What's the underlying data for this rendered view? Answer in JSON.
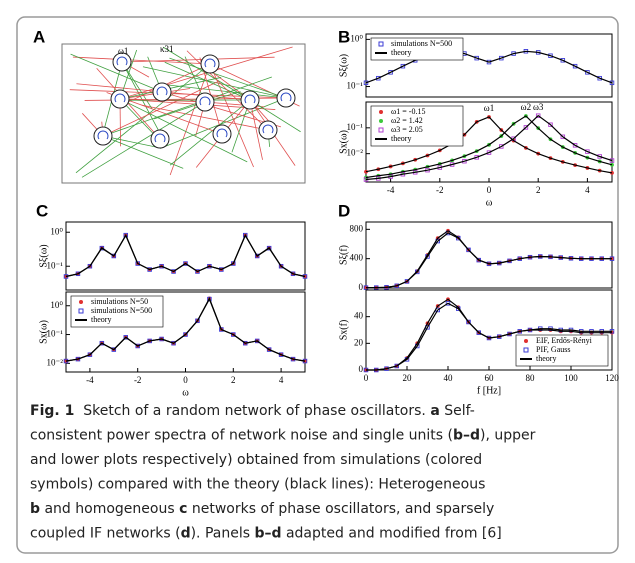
{
  "panel_labels": [
    "A",
    "B",
    "C",
    "D"
  ],
  "network": {
    "node_label": "ω1",
    "coupling_label": "κ31"
  },
  "plots": [
    {
      "type": "line",
      "ylabel": "Sξ(ω)",
      "yscale": "log",
      "xlim": [
        -5,
        5
      ],
      "ylim": [
        0.06,
        1.3
      ],
      "yticks": [
        {
          "value": 0.1,
          "label": "10⁻¹"
        },
        {
          "value": 1,
          "label": "10⁰"
        }
      ],
      "x": [
        -5,
        -4.5,
        -4,
        -3.5,
        -3,
        -2.5,
        -2,
        -1.5,
        -1,
        -0.5,
        0,
        0.5,
        1,
        1.5,
        2,
        2.5,
        3,
        3.5,
        4,
        4.5,
        5
      ],
      "series": [
        {
          "name": "simulations N=500",
          "color": "#3b3bd6",
          "marker": "square",
          "values": [
            0.12,
            0.15,
            0.2,
            0.27,
            0.36,
            0.45,
            0.53,
            0.56,
            0.5,
            0.4,
            0.33,
            0.4,
            0.5,
            0.56,
            0.53,
            0.45,
            0.36,
            0.27,
            0.2,
            0.15,
            0.12
          ]
        }
      ],
      "overlay": {
        "name": "theory",
        "color": "#000000"
      },
      "legend": "upper left"
    },
    {
      "type": "line",
      "ylabel": "Sx(ω)",
      "xlabel": "ω",
      "yscale": "log",
      "xlim": [
        -5,
        5
      ],
      "ylim": [
        0.0008,
        1
      ],
      "yticks": [
        {
          "value": 0.01,
          "label": "10⁻²"
        },
        {
          "value": 0.1,
          "label": "10⁻¹"
        }
      ],
      "xticks": [
        -4,
        -2,
        0,
        2,
        4
      ],
      "x": [
        -5,
        -4.5,
        -4,
        -3.5,
        -3,
        -2.5,
        -2,
        -1.5,
        -1,
        -0.5,
        0,
        0.5,
        1,
        1.5,
        2,
        2.5,
        3,
        3.5,
        4,
        4.5,
        5
      ],
      "series": [
        {
          "name": "ω1 = -0.15",
          "color": "#e03030",
          "marker": "circle",
          "values": [
            0.002,
            0.0025,
            0.0032,
            0.0042,
            0.0058,
            0.0085,
            0.0134,
            0.024,
            0.054,
            0.17,
            0.263,
            0.082,
            0.032,
            0.0167,
            0.01,
            0.0067,
            0.0048,
            0.0036,
            0.0028,
            0.0022,
            0.0018
          ]
        },
        {
          "name": "ω2 = 1.42",
          "color": "#3cc83c",
          "marker": "circle",
          "values": [
            0.0012,
            0.0014,
            0.0016,
            0.002,
            0.0024,
            0.0031,
            0.004,
            0.0055,
            0.008,
            0.0125,
            0.022,
            0.048,
            0.143,
            0.288,
            0.097,
            0.036,
            0.018,
            0.0107,
            0.007,
            0.005,
            0.0037
          ]
        },
        {
          "name": "ω3 = 2.05",
          "color": "#b040d0",
          "marker": "square",
          "values": [
            0.001,
            0.0011,
            0.0013,
            0.0016,
            0.0019,
            0.0023,
            0.0029,
            0.0038,
            0.0051,
            0.0072,
            0.011,
            0.019,
            0.038,
            0.104,
            0.295,
            0.132,
            0.045,
            0.021,
            0.012,
            0.0078,
            0.0054
          ]
        }
      ],
      "annotations": [
        "ω1",
        "ω2",
        "ω3"
      ],
      "overlay": {
        "name": "theory",
        "color": "#000000"
      },
      "legend": "upper left"
    },
    {
      "type": "line",
      "ylabel": "Sξ(ω)",
      "yscale": "log",
      "xlim": [
        -5,
        5
      ],
      "ylim": [
        0.02,
        2
      ],
      "yticks": [
        {
          "value": 0.1,
          "label": "10⁻¹"
        },
        {
          "value": 1,
          "label": "10⁰"
        }
      ],
      "x": [
        -5,
        -4.5,
        -4,
        -3.5,
        -3,
        -2.5,
        -2,
        -1.5,
        -1,
        -0.5,
        0,
        0.5,
        1,
        1.5,
        2,
        2.5,
        3,
        3.5,
        4,
        4.5,
        5
      ],
      "series": [
        {
          "color": "#e03030",
          "marker": "circle",
          "values": [
            0.05,
            0.06,
            0.1,
            0.35,
            0.2,
            0.8,
            0.12,
            0.08,
            0.1,
            0.07,
            0.12,
            0.07,
            0.1,
            0.08,
            0.12,
            0.8,
            0.2,
            0.35,
            0.1,
            0.06,
            0.05
          ]
        },
        {
          "color": "#3b3bd6",
          "marker": "square",
          "values": [
            0.05,
            0.06,
            0.1,
            0.34,
            0.2,
            0.82,
            0.12,
            0.08,
            0.1,
            0.07,
            0.12,
            0.07,
            0.1,
            0.08,
            0.12,
            0.82,
            0.2,
            0.34,
            0.1,
            0.06,
            0.05
          ]
        }
      ],
      "overlay": {
        "color": "#000000"
      }
    },
    {
      "type": "line",
      "ylabel": "Sx(ω)",
      "xlabel": "ω",
      "yscale": "log",
      "xlim": [
        -5,
        5
      ],
      "ylim": [
        0.005,
        3
      ],
      "yticks": [
        {
          "value": 0.01,
          "label": "10⁻²"
        },
        {
          "value": 0.1,
          "label": "10⁻¹"
        },
        {
          "value": 1,
          "label": "10⁰"
        }
      ],
      "xticks": [
        -4,
        -2,
        0,
        2,
        4
      ],
      "x": [
        -5,
        -4.5,
        -4,
        -3.5,
        -3,
        -2.5,
        -2,
        -1.5,
        -1,
        -0.5,
        0,
        0.5,
        1,
        1.5,
        2,
        2.5,
        3,
        3.5,
        4,
        4.5,
        5
      ],
      "series": [
        {
          "name": "simulations N=50",
          "color": "#e03030",
          "marker": "circle",
          "values": [
            0.012,
            0.014,
            0.02,
            0.05,
            0.03,
            0.08,
            0.04,
            0.06,
            0.07,
            0.05,
            0.1,
            0.3,
            1.8,
            0.15,
            0.1,
            0.05,
            0.06,
            0.03,
            0.02,
            0.014,
            0.012
          ]
        },
        {
          "name": "simulations N=500",
          "color": "#3b3bd6",
          "marker": "square",
          "values": [
            0.012,
            0.014,
            0.02,
            0.05,
            0.03,
            0.08,
            0.04,
            0.06,
            0.07,
            0.05,
            0.1,
            0.3,
            1.7,
            0.15,
            0.1,
            0.05,
            0.06,
            0.03,
            0.02,
            0.014,
            0.012
          ]
        }
      ],
      "overlay": {
        "name": "theory",
        "color": "#000000"
      },
      "legend": "upper left"
    },
    {
      "type": "line",
      "ylabel": "Sξ(f)",
      "xlim": [
        0,
        120
      ],
      "ylim": [
        0,
        900
      ],
      "yticks": [
        0,
        400,
        800
      ],
      "x": [
        0,
        5,
        10,
        15,
        20,
        25,
        30,
        35,
        40,
        45,
        50,
        55,
        60,
        65,
        70,
        75,
        80,
        85,
        90,
        95,
        100,
        105,
        110,
        115,
        120
      ],
      "series": [
        {
          "color": "#e03030",
          "marker": "circle",
          "values": [
            5,
            5,
            10,
            30,
            90,
            230,
            450,
            680,
            780,
            690,
            520,
            380,
            330,
            340,
            370,
            400,
            420,
            430,
            425,
            415,
            405,
            400,
            400,
            400,
            400
          ]
        },
        {
          "color": "#3b3bd6",
          "marker": "square",
          "values": [
            5,
            5,
            10,
            30,
            90,
            220,
            430,
            640,
            750,
            680,
            520,
            380,
            330,
            340,
            370,
            400,
            420,
            430,
            425,
            415,
            405,
            400,
            400,
            400,
            400
          ]
        }
      ],
      "overlay": {
        "color": "#000000"
      }
    },
    {
      "type": "line",
      "ylabel": "Sx(f)",
      "xlabel": "f [Hz]",
      "xlim": [
        0,
        120
      ],
      "ylim": [
        0,
        60
      ],
      "yticks": [
        0,
        20,
        40
      ],
      "xticks": [
        0,
        20,
        40,
        60,
        80,
        100,
        120
      ],
      "x": [
        0,
        5,
        10,
        15,
        20,
        25,
        30,
        35,
        40,
        45,
        50,
        55,
        60,
        65,
        70,
        75,
        80,
        85,
        90,
        95,
        100,
        105,
        110,
        115,
        120
      ],
      "series": [
        {
          "name": "EIF, Erdős-Rényi",
          "color": "#e03030",
          "marker": "circle",
          "values": [
            0,
            0,
            1,
            3,
            9,
            20,
            35,
            48,
            53,
            47,
            36,
            28,
            24,
            25,
            27,
            29,
            30,
            30,
            30,
            29,
            29,
            28,
            28,
            28,
            28
          ]
        },
        {
          "name": "PIF, Gauss",
          "color": "#3b3bd6",
          "marker": "square",
          "values": [
            0,
            0,
            1,
            3,
            8,
            18,
            32,
            45,
            50,
            46,
            36,
            28,
            24,
            25,
            27,
            29,
            30,
            31,
            31,
            30,
            30,
            29,
            29,
            29,
            29
          ]
        }
      ],
      "overlay": {
        "name": "theory",
        "color": "#000000"
      },
      "legend": "lower right"
    }
  ],
  "caption": {
    "lines": [
      [
        {
          "text": "Fig. 1",
          "bold": true
        },
        {
          "text": "  Sketch of a random network of phase oscillators. "
        },
        {
          "text": "a",
          "bold": true
        },
        {
          "text": " Self-"
        }
      ],
      [
        {
          "text": "consistent power spectra of network noise and single units ("
        },
        {
          "text": "b–d",
          "bold": true
        },
        {
          "text": "), upper"
        }
      ],
      [
        {
          "text": "and lower plots respectively) obtained from simulations (colored"
        }
      ],
      [
        {
          "text": "symbols) compared with the theory (black lines): Heterogeneous"
        }
      ],
      [
        {
          "text": "b",
          "bold": true
        },
        {
          "text": " and homogeneous "
        },
        {
          "text": "c",
          "bold": true
        },
        {
          "text": " networks of phase oscillators, and sparsely"
        }
      ],
      [
        {
          "text": "coupled IF networks ("
        },
        {
          "text": "d",
          "bold": true
        },
        {
          "text": "). Panels "
        },
        {
          "text": "b–d",
          "bold": true
        },
        {
          "text": " adapted and modified from [6]"
        }
      ]
    ]
  }
}
